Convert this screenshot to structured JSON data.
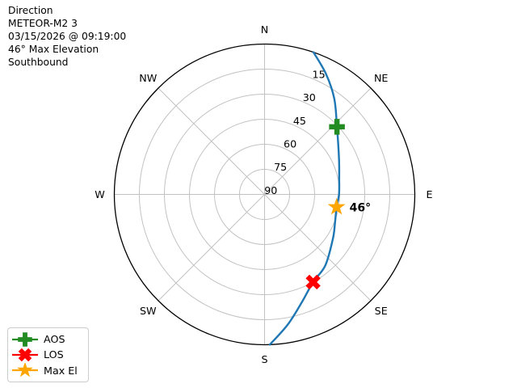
{
  "chart_data": {
    "type": "polar_sky_plot",
    "title_lines": [
      "Direction",
      "METEOR-M2 3",
      "03/15/2026 @ 09:19:00",
      "46° Max Elevation",
      "Southbound"
    ],
    "compass": [
      {
        "label": "N",
        "az": 0
      },
      {
        "label": "NE",
        "az": 45
      },
      {
        "label": "E",
        "az": 90
      },
      {
        "label": "SE",
        "az": 135
      },
      {
        "label": "S",
        "az": 180
      },
      {
        "label": "SW",
        "az": 225
      },
      {
        "label": "W",
        "az": 270
      },
      {
        "label": "NW",
        "az": 315
      }
    ],
    "elevation_ticks": [
      15,
      30,
      45,
      60,
      75,
      90
    ],
    "elevation_tick_azimuth_deg": 22.5,
    "elevation_range": [
      0,
      90
    ],
    "track": {
      "name": "pass-track",
      "color": "#1f77b4",
      "az_el_points": [
        [
          19,
          0
        ],
        [
          27,
          9
        ],
        [
          36,
          19
        ],
        [
          47,
          30.7
        ],
        [
          64,
          40.4
        ],
        [
          78,
          44.3
        ],
        [
          90,
          45.4
        ],
        [
          100,
          46.2
        ],
        [
          112,
          44.5
        ],
        [
          123,
          41.2
        ],
        [
          139.5,
          34
        ],
        [
          151,
          30
        ],
        [
          161.4,
          21.2
        ],
        [
          170,
          10.7
        ],
        [
          178,
          0
        ]
      ]
    },
    "markers": [
      {
        "name": "AOS",
        "shape": "plus",
        "color": "#228B22",
        "az": 47,
        "el": 30.7
      },
      {
        "name": "LOS",
        "shape": "x",
        "color": "#ff0000",
        "az": 151,
        "el": 30
      },
      {
        "name": "Max El",
        "shape": "star",
        "color": "#FFA500",
        "az": 100,
        "el": 46.2,
        "annotation": "46°"
      }
    ],
    "colors": {
      "grid": "#c2c2c2",
      "outline": "#000000",
      "text": "#000000"
    }
  }
}
